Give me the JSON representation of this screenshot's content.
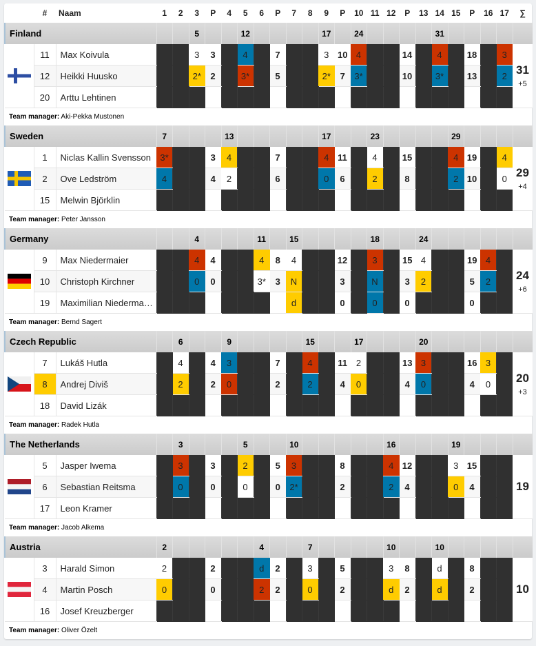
{
  "header": {
    "hash": "#",
    "name": "Naam",
    "sum": "∑",
    "columns": [
      "1",
      "2",
      "3",
      "P",
      "4",
      "5",
      "6",
      "P",
      "7",
      "8",
      "9",
      "P",
      "10",
      "11",
      "12",
      "P",
      "13",
      "14",
      "15",
      "P",
      "16",
      "17"
    ]
  },
  "manager_label": "Team manager:",
  "colors": {
    "red": "#cc3300",
    "blue": "#0077aa",
    "yellow": "#ffcc00",
    "dark": "#303030"
  },
  "teams": [
    {
      "name": "Finland",
      "flag": "finland-flag",
      "header": [
        "",
        "",
        "5",
        "",
        "",
        "12",
        "",
        "",
        "",
        "",
        "17",
        "",
        "24",
        "",
        "",
        "",
        "",
        "31",
        "",
        "",
        "",
        ""
      ],
      "riders": [
        {
          "num": "11",
          "name": "Max Koivula",
          "cells": [
            "x",
            "x",
            "w:3",
            "3",
            "x",
            "b:4",
            "x",
            "7",
            "x",
            "x",
            "w:3",
            "10",
            "r:4",
            "x",
            "x",
            "14",
            "x",
            "r:4",
            "x",
            "18",
            "x",
            "r:3"
          ]
        },
        {
          "num": "12",
          "name": "Heikki Huusko",
          "cells": [
            "x",
            "x",
            "y:2*",
            "2",
            "x",
            "r:3*",
            "x",
            "5",
            "x",
            "x",
            "y:2*",
            "7",
            "b:3*",
            "x",
            "x",
            "10",
            "x",
            "b:3*",
            "x",
            "13",
            "x",
            "b:2"
          ]
        },
        {
          "num": "20",
          "name": "Arttu Lehtinen",
          "cells": [
            "x",
            "x",
            "x",
            "",
            "x",
            "x",
            "x",
            "",
            "x",
            "x",
            "x",
            "",
            "x",
            "x",
            "x",
            "",
            "x",
            "x",
            "x",
            "",
            "x",
            "x"
          ]
        }
      ],
      "total": "31",
      "delta": "+5",
      "manager": "Aki-Pekka Mustonen"
    },
    {
      "name": "Sweden",
      "flag": "sweden-flag",
      "header": [
        "7",
        "",
        "",
        "",
        "13",
        "",
        "",
        "",
        "",
        "",
        "17",
        "",
        "",
        "23",
        "",
        "",
        "",
        "",
        "29",
        "",
        "",
        ""
      ],
      "riders": [
        {
          "num": "1",
          "name": "Niclas Kallin Svensson",
          "cells": [
            "r:3*",
            "x",
            "x",
            "3",
            "y:4",
            "x",
            "x",
            "7",
            "x",
            "x",
            "r:4",
            "11",
            "x",
            "w:4",
            "x",
            "15",
            "x",
            "x",
            "r:4",
            "19",
            "x",
            "y:4"
          ]
        },
        {
          "num": "2",
          "name": "Ove Ledström",
          "cells": [
            "b:4",
            "x",
            "x",
            "4",
            "w:2",
            "x",
            "x",
            "6",
            "x",
            "x",
            "b:0",
            "6",
            "x",
            "y:2",
            "x",
            "8",
            "x",
            "x",
            "b:2",
            "10",
            "x",
            "w:0"
          ]
        },
        {
          "num": "15",
          "name": "Melwin Björklin",
          "cells": [
            "x",
            "x",
            "x",
            "",
            "x",
            "x",
            "x",
            "",
            "x",
            "x",
            "x",
            "",
            "x",
            "x",
            "x",
            "",
            "x",
            "x",
            "x",
            "",
            "x",
            "x"
          ]
        }
      ],
      "total": "29",
      "delta": "+4",
      "manager": "Peter Jansson"
    },
    {
      "name": "Germany",
      "flag": "germany-flag",
      "header": [
        "",
        "",
        "4",
        "",
        "",
        "",
        "11",
        "",
        "15",
        "",
        "",
        "",
        "",
        "18",
        "",
        "",
        "24",
        "",
        "",
        "",
        "",
        ""
      ],
      "riders": [
        {
          "num": "9",
          "name": "Max Niedermaier",
          "cells": [
            "x",
            "x",
            "r:4",
            "4",
            "x",
            "x",
            "y:4",
            "8",
            "w:4",
            "x",
            "x",
            "12",
            "x",
            "r:3",
            "x",
            "15",
            "w:4",
            "x",
            "x",
            "19",
            "r:4",
            "x"
          ]
        },
        {
          "num": "10",
          "name": "Christoph Kirchner",
          "cells": [
            "x",
            "x",
            "b:0",
            "0",
            "x",
            "x",
            "w:3*",
            "3",
            "y:N",
            "x",
            "x",
            "3",
            "x",
            "b:N",
            "x",
            "3",
            "y:2",
            "x",
            "x",
            "5",
            "b:2",
            "x"
          ]
        },
        {
          "num": "19",
          "name": "Maximilian Niederma…",
          "cells": [
            "x",
            "x",
            "x",
            "",
            "x",
            "x",
            "x",
            "",
            "y:d",
            "x",
            "x",
            "0",
            "x",
            "b:0",
            "x",
            "0",
            "x",
            "x",
            "x",
            "0",
            "x",
            "x"
          ]
        }
      ],
      "total": "24",
      "delta": "+6",
      "manager": "Bernd Sagert"
    },
    {
      "name": "Czech Republic",
      "flag": "czech-flag",
      "header": [
        "",
        "6",
        "",
        "",
        "9",
        "",
        "",
        "",
        "",
        "15",
        "",
        "",
        "17",
        "",
        "",
        "",
        "20",
        "",
        "",
        "",
        "",
        ""
      ],
      "riders": [
        {
          "num": "7",
          "name": "Lukáš Hutla",
          "cells": [
            "x",
            "w:4",
            "x",
            "4",
            "b:3",
            "x",
            "x",
            "7",
            "x",
            "r:4",
            "x",
            "11",
            "w:2",
            "x",
            "x",
            "13",
            "r:3",
            "x",
            "x",
            "16",
            "y:3",
            "x"
          ]
        },
        {
          "num": "8",
          "name": "Andrej Diviš",
          "highlight": true,
          "cells": [
            "x",
            "y:2",
            "x",
            "2",
            "r:0",
            "x",
            "x",
            "2",
            "x",
            "b:2",
            "x",
            "4",
            "y:0",
            "x",
            "x",
            "4",
            "b:0",
            "x",
            "x",
            "4",
            "w:0",
            "x"
          ]
        },
        {
          "num": "18",
          "name": "David Lizák",
          "cells": [
            "x",
            "x",
            "x",
            "",
            "x",
            "x",
            "x",
            "",
            "x",
            "x",
            "x",
            "",
            "x",
            "x",
            "x",
            "",
            "x",
            "x",
            "x",
            "",
            "x",
            "x"
          ]
        }
      ],
      "total": "20",
      "delta": "+3",
      "manager": "Radek Hutla"
    },
    {
      "name": "The Netherlands",
      "flag": "netherlands-flag",
      "header": [
        "",
        "3",
        "",
        "",
        "",
        "5",
        "",
        "",
        "10",
        "",
        "",
        "",
        "",
        "",
        "16",
        "",
        "",
        "",
        "19",
        "",
        "",
        ""
      ],
      "riders": [
        {
          "num": "5",
          "name": "Jasper Iwema",
          "cells": [
            "x",
            "r:3",
            "x",
            "3",
            "x",
            "y:2",
            "x",
            "5",
            "r:3",
            "x",
            "x",
            "8",
            "x",
            "x",
            "r:4",
            "12",
            "x",
            "x",
            "w:3",
            "15",
            "x",
            "x"
          ]
        },
        {
          "num": "6",
          "name": "Sebastian Reitsma",
          "cells": [
            "x",
            "b:0",
            "x",
            "0",
            "x",
            "w:0",
            "x",
            "0",
            "b:2*",
            "x",
            "x",
            "2",
            "x",
            "x",
            "b:2",
            "4",
            "x",
            "x",
            "y:0",
            "4",
            "x",
            "x"
          ]
        },
        {
          "num": "17",
          "name": "Leon Kramer",
          "cells": [
            "x",
            "x",
            "x",
            "",
            "x",
            "x",
            "x",
            "",
            "x",
            "x",
            "x",
            "",
            "x",
            "x",
            "x",
            "",
            "x",
            "x",
            "x",
            "",
            "x",
            "x"
          ]
        }
      ],
      "total": "19",
      "delta": "",
      "manager": "Jacob Alkema"
    },
    {
      "name": "Austria",
      "flag": "austria-flag",
      "header": [
        "2",
        "",
        "",
        "",
        "",
        "",
        "4",
        "",
        "",
        "7",
        "",
        "",
        "",
        "",
        "10",
        "",
        "",
        "10",
        "",
        "",
        "",
        ""
      ],
      "riders": [
        {
          "num": "3",
          "name": "Harald Simon",
          "cells": [
            "w:2",
            "x",
            "x",
            "2",
            "x",
            "x",
            "b:d",
            "2",
            "x",
            "w:3",
            "x",
            "5",
            "x",
            "x",
            "w:3",
            "8",
            "x",
            "w:d",
            "x",
            "8",
            "x",
            "x"
          ]
        },
        {
          "num": "4",
          "name": "Martin Posch",
          "cells": [
            "y:0",
            "x",
            "x",
            "0",
            "x",
            "x",
            "r:2",
            "2",
            "x",
            "y:0",
            "x",
            "2",
            "x",
            "x",
            "y:d",
            "2",
            "x",
            "y:d",
            "x",
            "2",
            "x",
            "x"
          ]
        },
        {
          "num": "16",
          "name": "Josef Kreuzberger",
          "cells": [
            "x",
            "x",
            "x",
            "",
            "x",
            "x",
            "x",
            "",
            "x",
            "x",
            "x",
            "",
            "x",
            "x",
            "x",
            "",
            "x",
            "x",
            "x",
            "",
            "x",
            "x"
          ]
        }
      ],
      "total": "10",
      "delta": "",
      "manager": "Oliver Özelt"
    }
  ]
}
